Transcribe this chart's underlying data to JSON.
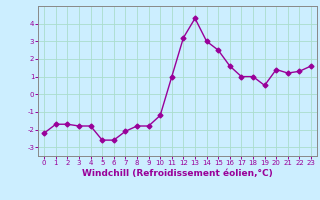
{
  "x": [
    0,
    1,
    2,
    3,
    4,
    5,
    6,
    7,
    8,
    9,
    10,
    11,
    12,
    13,
    14,
    15,
    16,
    17,
    18,
    19,
    20,
    21,
    22,
    23
  ],
  "y": [
    -2.2,
    -1.7,
    -1.7,
    -1.8,
    -1.8,
    -2.6,
    -2.6,
    -2.1,
    -1.8,
    -1.8,
    -1.2,
    1.0,
    3.2,
    4.3,
    3.0,
    2.5,
    1.6,
    1.0,
    1.0,
    0.5,
    1.4,
    1.2,
    1.3,
    1.6
  ],
  "line_color": "#990099",
  "marker": "D",
  "marker_size": 2.5,
  "line_width": 1.0,
  "xlabel": "Windchill (Refroidissement éolien,°C)",
  "xlabel_fontsize": 6.5,
  "background_color": "#cceeff",
  "grid_color": "#aaddcc",
  "tick_color": "#990099",
  "tick_label_color": "#990099",
  "ylim": [
    -3.5,
    5.0
  ],
  "xlim": [
    -0.5,
    23.5
  ],
  "yticks": [
    -3,
    -2,
    -1,
    0,
    1,
    2,
    3,
    4
  ],
  "xticks": [
    0,
    1,
    2,
    3,
    4,
    5,
    6,
    7,
    8,
    9,
    10,
    11,
    12,
    13,
    14,
    15,
    16,
    17,
    18,
    19,
    20,
    21,
    22,
    23
  ],
  "xtick_labels": [
    "0",
    "1",
    "2",
    "3",
    "4",
    "5",
    "6",
    "7",
    "8",
    "9",
    "10",
    "11",
    "12",
    "13",
    "14",
    "15",
    "16",
    "17",
    "18",
    "19",
    "20",
    "21",
    "22",
    "23"
  ]
}
